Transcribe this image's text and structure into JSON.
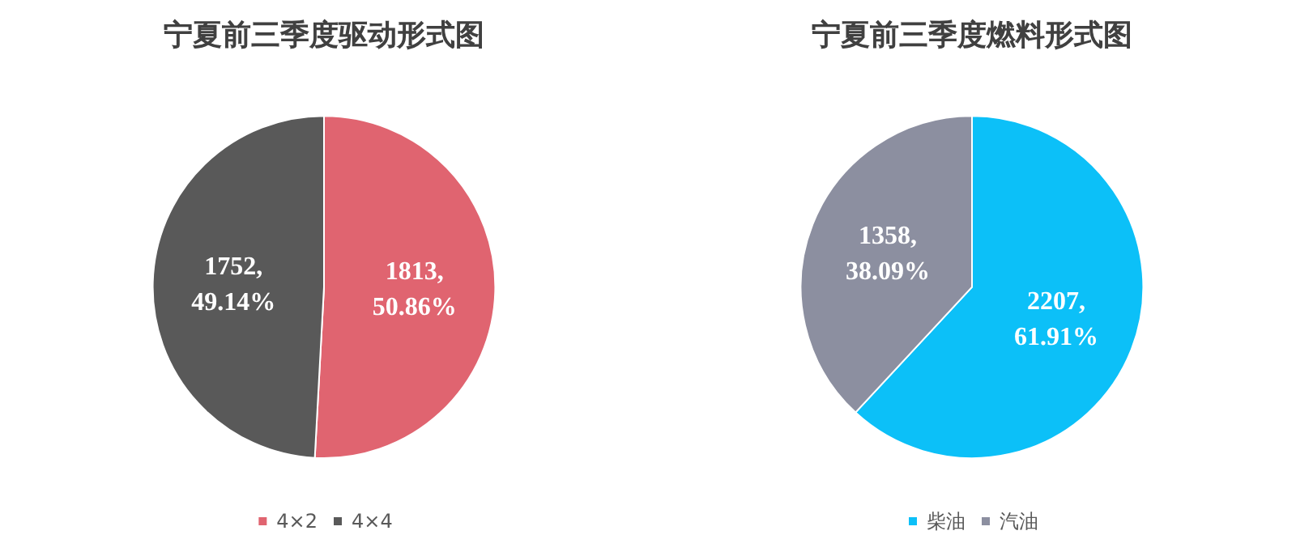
{
  "chart_data": [
    {
      "type": "pie",
      "title": "宁夏前三季度驱动形式图",
      "categories": [
        "4×2",
        "4×4"
      ],
      "values": [
        1813,
        1752
      ],
      "colors": [
        "#e06470",
        "#595959"
      ],
      "value_labels": [
        "1813, 50.86%",
        "1752, 49.14%"
      ],
      "legend": "bottom"
    },
    {
      "type": "pie",
      "title": "宁夏前三季度燃料形式图",
      "categories": [
        "柴油",
        "汽油"
      ],
      "values": [
        2207,
        1358
      ],
      "colors": [
        "#0cc0f8",
        "#8c8fa0"
      ],
      "value_labels": [
        "2207, 61.91%",
        "1358, 38.09%"
      ],
      "legend": "bottom"
    }
  ]
}
